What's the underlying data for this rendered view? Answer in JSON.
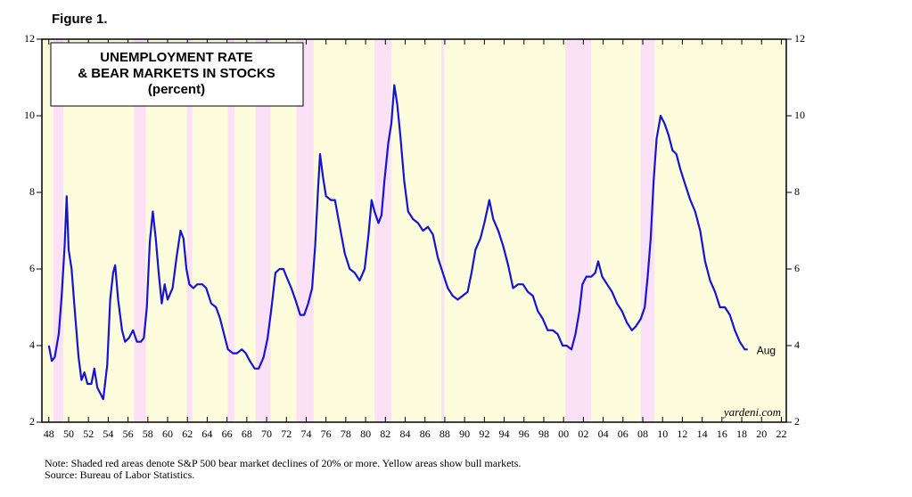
{
  "chart_data": {
    "type": "line",
    "figure_label": "Figure 1.",
    "title_lines": [
      "UNEMPLOYMENT RATE",
      "& BEAR MARKETS IN STOCKS"
    ],
    "subtitle": "(percent)",
    "x": [
      1948.0,
      1948.3,
      1948.6,
      1949.0,
      1949.3,
      1949.6,
      1949.8,
      1950.0,
      1950.3,
      1950.6,
      1951.0,
      1951.3,
      1951.6,
      1951.9,
      1952.3,
      1952.6,
      1952.9,
      1953.3,
      1953.5,
      1953.9,
      1954.2,
      1954.5,
      1954.7,
      1955.0,
      1955.4,
      1955.7,
      1956.1,
      1956.5,
      1956.9,
      1957.3,
      1957.6,
      1957.9,
      1958.2,
      1958.5,
      1958.8,
      1959.1,
      1959.4,
      1959.7,
      1960.0,
      1960.5,
      1960.9,
      1961.3,
      1961.6,
      1961.9,
      1962.2,
      1962.6,
      1963.0,
      1963.5,
      1963.9,
      1964.4,
      1964.9,
      1965.3,
      1965.7,
      1966.1,
      1966.6,
      1967.0,
      1967.5,
      1967.9,
      1968.3,
      1968.8,
      1969.2,
      1969.7,
      1970.1,
      1970.5,
      1970.9,
      1971.3,
      1971.7,
      1972.0,
      1972.5,
      1972.9,
      1973.4,
      1973.8,
      1974.2,
      1974.6,
      1974.9,
      1975.2,
      1975.4,
      1975.7,
      1976.0,
      1976.5,
      1976.9,
      1977.4,
      1977.9,
      1978.4,
      1978.9,
      1979.4,
      1979.9,
      1980.3,
      1980.6,
      1980.9,
      1981.3,
      1981.6,
      1981.9,
      1982.3,
      1982.6,
      1982.9,
      1983.2,
      1983.5,
      1983.9,
      1984.3,
      1984.8,
      1985.3,
      1985.8,
      1986.3,
      1986.8,
      1987.3,
      1987.8,
      1988.3,
      1988.8,
      1989.3,
      1989.8,
      1990.3,
      1990.7,
      1991.1,
      1991.6,
      1992.0,
      1992.5,
      1992.9,
      1993.4,
      1993.9,
      1994.4,
      1994.9,
      1995.4,
      1995.9,
      1996.4,
      1996.9,
      1997.4,
      1997.9,
      1998.4,
      1998.9,
      1999.4,
      1999.9,
      2000.3,
      2000.8,
      2001.2,
      2001.6,
      2001.9,
      2002.3,
      2002.8,
      2003.2,
      2003.5,
      2003.9,
      2004.4,
      2004.9,
      2005.4,
      2005.9,
      2006.4,
      2006.9,
      2007.3,
      2007.8,
      2008.2,
      2008.5,
      2008.8,
      2009.1,
      2009.4,
      2009.8,
      2010.2,
      2010.6,
      2011.0,
      2011.4,
      2011.8,
      2012.3,
      2012.8,
      2013.3,
      2013.8,
      2014.3,
      2014.8,
      2015.3,
      2015.8,
      2016.3,
      2016.8,
      2017.3,
      2017.8,
      2018.3,
      2018.6
    ],
    "values": [
      4.0,
      3.6,
      3.7,
      4.3,
      5.3,
      6.6,
      7.9,
      6.5,
      6.0,
      5.0,
      3.7,
      3.1,
      3.3,
      3.0,
      3.0,
      3.4,
      2.9,
      2.7,
      2.6,
      3.5,
      5.2,
      5.9,
      6.1,
      5.2,
      4.4,
      4.1,
      4.2,
      4.4,
      4.1,
      4.1,
      4.2,
      5.0,
      6.7,
      7.5,
      6.8,
      5.9,
      5.1,
      5.6,
      5.2,
      5.5,
      6.3,
      7.0,
      6.8,
      6.0,
      5.6,
      5.5,
      5.6,
      5.6,
      5.5,
      5.1,
      5.0,
      4.7,
      4.3,
      3.9,
      3.8,
      3.8,
      3.9,
      3.8,
      3.6,
      3.4,
      3.4,
      3.7,
      4.2,
      5.0,
      5.9,
      6.0,
      6.0,
      5.8,
      5.5,
      5.2,
      4.8,
      4.8,
      5.1,
      5.5,
      6.6,
      8.1,
      9.0,
      8.4,
      7.9,
      7.8,
      7.8,
      7.1,
      6.4,
      6.0,
      5.9,
      5.7,
      6.0,
      6.9,
      7.8,
      7.5,
      7.2,
      7.4,
      8.3,
      9.3,
      9.8,
      10.8,
      10.3,
      9.5,
      8.3,
      7.5,
      7.3,
      7.2,
      7.0,
      7.1,
      6.9,
      6.3,
      5.9,
      5.5,
      5.3,
      5.2,
      5.3,
      5.4,
      5.9,
      6.5,
      6.8,
      7.2,
      7.8,
      7.3,
      7.0,
      6.6,
      6.1,
      5.5,
      5.6,
      5.6,
      5.4,
      5.3,
      4.9,
      4.7,
      4.4,
      4.4,
      4.3,
      4.0,
      4.0,
      3.9,
      4.3,
      4.9,
      5.6,
      5.8,
      5.8,
      5.9,
      6.2,
      5.8,
      5.6,
      5.4,
      5.1,
      4.9,
      4.6,
      4.4,
      4.5,
      4.7,
      5.0,
      5.8,
      6.8,
      8.3,
      9.4,
      10.0,
      9.8,
      9.5,
      9.1,
      9.0,
      8.6,
      8.2,
      7.8,
      7.5,
      7.0,
      6.2,
      5.7,
      5.4,
      5.0,
      5.0,
      4.8,
      4.4,
      4.1,
      3.9,
      3.9
    ],
    "color": "#1414d2",
    "last_point_label": "Aug",
    "bear_markets": [
      [
        1948.45,
        1949.45
      ],
      [
        1956.6,
        1957.8
      ],
      [
        1961.95,
        1962.5
      ],
      [
        1966.1,
        1966.75
      ],
      [
        1968.9,
        1970.4
      ],
      [
        1973.0,
        1974.75
      ],
      [
        1980.9,
        1982.6
      ],
      [
        1987.65,
        1987.95
      ],
      [
        2000.2,
        2002.8
      ],
      [
        2007.8,
        2009.2
      ]
    ],
    "bear_color": "#fbe1f6",
    "bull_color": "#fdfcdc",
    "xlim": [
      1947.3,
      2022.5
    ],
    "ylim": [
      2,
      12
    ],
    "yticks": [
      2,
      4,
      6,
      8,
      10,
      12
    ],
    "xticks": [
      {
        "value": 1948,
        "label": "48"
      },
      {
        "value": 1950,
        "label": "50"
      },
      {
        "value": 1952,
        "label": "52"
      },
      {
        "value": 1954,
        "label": "54"
      },
      {
        "value": 1956,
        "label": "56"
      },
      {
        "value": 1958,
        "label": "58"
      },
      {
        "value": 1960,
        "label": "60"
      },
      {
        "value": 1962,
        "label": "62"
      },
      {
        "value": 1964,
        "label": "64"
      },
      {
        "value": 1966,
        "label": "66"
      },
      {
        "value": 1968,
        "label": "68"
      },
      {
        "value": 1970,
        "label": "70"
      },
      {
        "value": 1972,
        "label": "72"
      },
      {
        "value": 1974,
        "label": "74"
      },
      {
        "value": 1976,
        "label": "76"
      },
      {
        "value": 1978,
        "label": "78"
      },
      {
        "value": 1980,
        "label": "80"
      },
      {
        "value": 1982,
        "label": "82"
      },
      {
        "value": 1984,
        "label": "84"
      },
      {
        "value": 1986,
        "label": "86"
      },
      {
        "value": 1988,
        "label": "88"
      },
      {
        "value": 1990,
        "label": "90"
      },
      {
        "value": 1992,
        "label": "92"
      },
      {
        "value": 1994,
        "label": "94"
      },
      {
        "value": 1996,
        "label": "96"
      },
      {
        "value": 1998,
        "label": "98"
      },
      {
        "value": 2000,
        "label": "00"
      },
      {
        "value": 2002,
        "label": "02"
      },
      {
        "value": 2004,
        "label": "04"
      },
      {
        "value": 2006,
        "label": "06"
      },
      {
        "value": 2008,
        "label": "08"
      },
      {
        "value": 2010,
        "label": "10"
      },
      {
        "value": 2012,
        "label": "12"
      },
      {
        "value": 2014,
        "label": "14"
      },
      {
        "value": 2016,
        "label": "16"
      },
      {
        "value": 2018,
        "label": "18"
      },
      {
        "value": 2020,
        "label": "20"
      },
      {
        "value": 2022,
        "label": "22"
      }
    ],
    "watermark": "yardeni.com",
    "note": "Note: Shaded red areas denote S&P 500 bear market declines of 20% or more. Yellow areas show bull markets.",
    "source": "Source: Bureau of Labor Statistics."
  }
}
